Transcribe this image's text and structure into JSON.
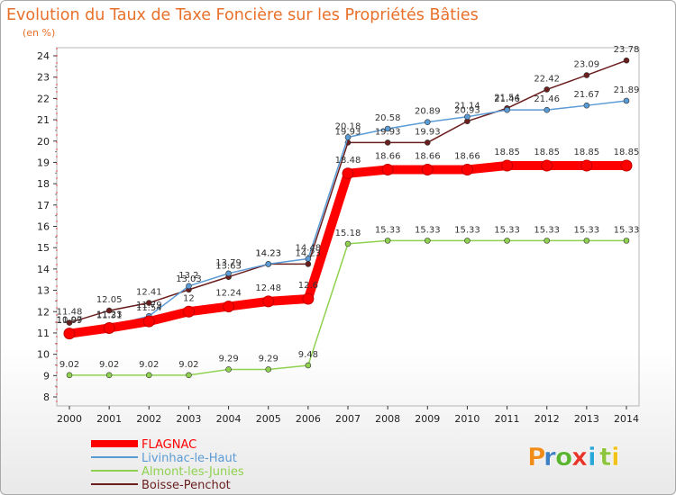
{
  "chart_data": {
    "type": "line",
    "title": "Evolution du Taux de Taxe Foncière sur les Propriétés Bâties",
    "subtitle": "(en %)",
    "xlabel": "",
    "ylabel": "",
    "x": [
      "2000",
      "2001",
      "2002",
      "2003",
      "2004",
      "2005",
      "2006",
      "2007",
      "2008",
      "2009",
      "2010",
      "2011",
      "2012",
      "2013",
      "2014"
    ],
    "ylim": [
      8,
      24
    ],
    "yticks": [
      "8",
      "9",
      "10",
      "11",
      "12",
      "13",
      "14",
      "15",
      "16",
      "17",
      "18",
      "19",
      "20",
      "21",
      "22",
      "23",
      "24"
    ],
    "series": [
      {
        "name": "FLAGNAC",
        "color": "#ff0000",
        "values": [
          10.97,
          11.23,
          11.54,
          12,
          12.24,
          12.48,
          12.6,
          18.48,
          18.66,
          18.66,
          18.66,
          18.85,
          18.85,
          18.85,
          18.85
        ],
        "labels": [
          "10.97",
          "11.23",
          "11.54",
          "12",
          "12.24",
          "12.48",
          "12.6",
          "18.48",
          "18.66",
          "18.66",
          "18.66",
          "18.85",
          "18.85",
          "18.85",
          "18.85"
        ]
      },
      {
        "name": "Livinhac-le-Haut",
        "color": "#5b9bd5",
        "values": [
          11.09,
          11.31,
          11.79,
          13.2,
          13.79,
          14.23,
          14.48,
          20.18,
          20.58,
          20.89,
          21.14,
          21.46,
          21.46,
          21.67,
          21.89
        ],
        "labels": [
          "11.09",
          "11.31",
          "11.79",
          "13.2",
          "13.79",
          "14.23",
          "14.48",
          "20.18",
          "20.58",
          "20.89",
          "21.14",
          "21.46",
          "21.46",
          "21.67",
          "21.89"
        ]
      },
      {
        "name": "Almont-les-Junies",
        "color": "#8fd14f",
        "values": [
          9.02,
          9.02,
          9.02,
          9.02,
          9.29,
          9.29,
          9.48,
          15.18,
          15.33,
          15.33,
          15.33,
          15.33,
          15.33,
          15.33,
          15.33
        ],
        "labels": [
          "9.02",
          "9.02",
          "9.02",
          "9.02",
          "9.29",
          "9.29",
          "9.48",
          "15.18",
          "15.33",
          "15.33",
          "15.33",
          "15.33",
          "15.33",
          "15.33",
          "15.33"
        ]
      },
      {
        "name": "Boisse-Penchot",
        "color": "#6b1e1e",
        "values": [
          11.48,
          12.05,
          12.41,
          13.03,
          13.63,
          14.23,
          14.23,
          19.93,
          19.93,
          19.93,
          20.93,
          21.54,
          22.42,
          23.09,
          23.78
        ],
        "labels": [
          "11.48",
          "12.05",
          "12.41",
          "13.03",
          "13.63",
          "14.23",
          "14.23",
          "19.93",
          "19.93",
          "19.93",
          "20.93",
          "21.54",
          "22.42",
          "23.09",
          "23.78"
        ]
      }
    ],
    "legend_position": "bottom-left"
  },
  "brand": {
    "letters": [
      "P",
      "r",
      "o",
      "x",
      "i",
      "t",
      "i"
    ]
  }
}
